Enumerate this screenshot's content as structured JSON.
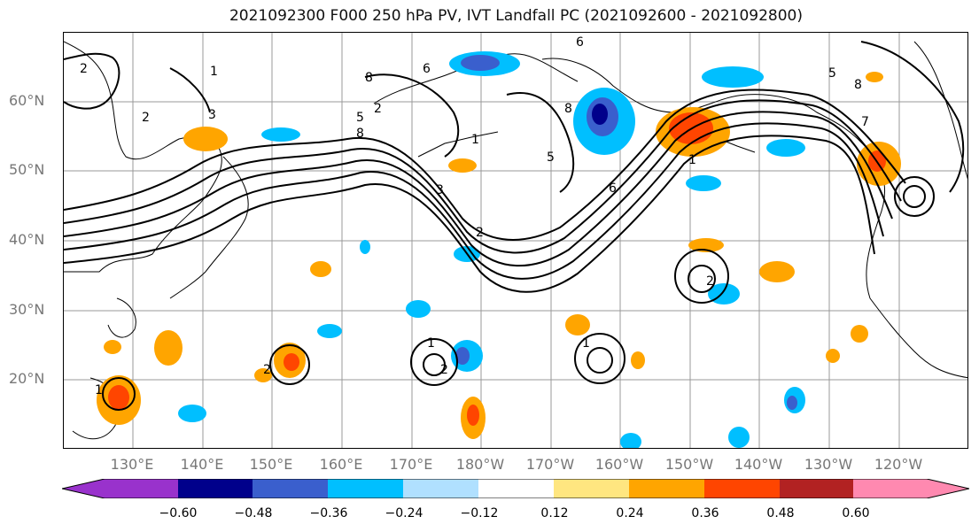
{
  "title": "2021092300 F000 250 hPa PV, IVT Landfall PC (2021092600 - 2021092800)",
  "lat_labels": [
    "60°N",
    "50°N",
    "40°N",
    "30°N",
    "20°N"
  ],
  "lon_labels": [
    "130°E",
    "140°E",
    "150°E",
    "160°E",
    "170°E",
    "180°W",
    "170°W",
    "160°W",
    "150°W",
    "140°W",
    "130°W",
    "120°W"
  ],
  "colorbar": {
    "ticks": [
      "−0.60",
      "−0.48",
      "−0.36",
      "−0.24",
      "−0.12",
      "0.12",
      "0.24",
      "0.36",
      "0.48",
      "0.60"
    ],
    "colors": [
      "#9932cc",
      "#00008b",
      "#3a5fcd",
      "#00bfff",
      "#b0e0ff",
      "#ffffff",
      "#ffe680",
      "#ffa500",
      "#ff4500",
      "#b22222",
      "#ff89b0"
    ]
  },
  "contour_labels": [
    "2",
    "1",
    "2",
    "3",
    "8",
    "6",
    "5",
    "2",
    "8",
    "6",
    "5",
    "8",
    "7",
    "1",
    "3",
    "2",
    "1",
    "5",
    "6",
    "8",
    "2",
    "1",
    "2",
    "1",
    "1",
    "2"
  ]
}
